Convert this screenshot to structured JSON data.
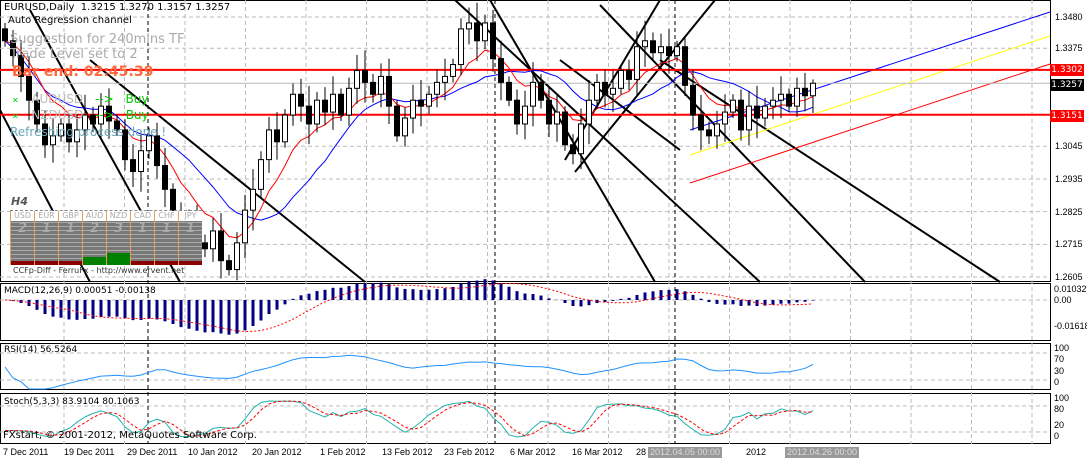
{
  "header": {
    "symbol_tf": "EURUSD,Daily",
    "ohlc": "1.3215 1.3270 1.3157 1.3257",
    "indicator": "Auto Regression channel"
  },
  "overlay": {
    "suggestion": "Suggestion for 240mins TF",
    "trade_level": "Trade Level set to 2",
    "bar_end": "Bar end: 02:45:39",
    "signals": [
      {
        "pair": "AUDUSD",
        "arrow": "-->",
        "action": "Buy"
      },
      {
        "pair": "NZDUSD",
        "arrow": "-->",
        "action": "Buy"
      }
    ],
    "status": "Refreshing process done !"
  },
  "ccfp": {
    "tf": "H4",
    "currencies": [
      "USD",
      "EUR",
      "GBP",
      "AUD",
      "NZD",
      "CAD",
      "CHF",
      "JPY"
    ],
    "values": [
      "2",
      "1",
      "1",
      "2",
      "3",
      "1",
      "1",
      "1"
    ],
    "bottom_colors": [
      "#8b0000",
      "#8b0000",
      "#8b0000",
      "#008000",
      "#008000",
      "#8b0000",
      "#8b0000",
      "#8b0000"
    ],
    "footer": "CCFp-Diff - FerruFx - http://www.ervent.net"
  },
  "price_axis": {
    "ticks": [
      "1.3480",
      "1.3375",
      "1.3045",
      "1.2935",
      "1.2825",
      "1.2715",
      "1.2605"
    ],
    "tick_values": [
      1.348,
      1.3375,
      1.3045,
      1.2935,
      1.2825,
      1.2715,
      1.2605
    ],
    "resistance": {
      "label": "1.3302",
      "value": 1.3302,
      "color": "#ff0000"
    },
    "support": {
      "label": "1.3151",
      "value": 1.3151,
      "color": "#ff0000"
    },
    "bid": {
      "label": "1.3257",
      "value": 1.3257
    }
  },
  "macd": {
    "label": "MACD(12,26,9) 0.00051 -0.00138",
    "ticks": [
      "0.01032",
      "0.00",
      "-0.01618"
    ]
  },
  "rsi": {
    "label": "RSI(14) 56.5264",
    "ticks": [
      "100",
      "70",
      "30",
      "0"
    ]
  },
  "stoch": {
    "label": "Stoch(5,3,3) 83.9104 80.1063",
    "ticks": [
      "100",
      "80",
      "20",
      "0"
    ]
  },
  "copyright": "FXstart, © 2001-2012, MetaQuotes Software Corp.",
  "time_axis": [
    "7 Dec 2011",
    "19 Dec 2011",
    "29 Dec 2011",
    "10 Jan 2012",
    "20 Jan 2012",
    "1 Feb 2012",
    "13 Feb 2012",
    "23 Feb 2012",
    "6 Mar 2012",
    "16 Mar 2012",
    "28",
    "2012.04.05 00:00",
    "2012",
    "2012.04.26 00:00"
  ],
  "colors": {
    "bull": "#ffffff",
    "bear": "#000000",
    "ma_fast": "#ff0000",
    "ma_slow": "#0000ff",
    "macd": "#000080",
    "rsi": "#1e90ff",
    "stoch_main": "#20b2aa",
    "stoch_signal": "#ff0000"
  },
  "chart_data": {
    "type": "candlestick",
    "symbol": "EURUSD",
    "timeframe": "Daily",
    "ylim": [
      1.2605,
      1.348
    ],
    "last_bar": {
      "open": 1.3215,
      "high": 1.327,
      "low": 1.3157,
      "close": 1.3257
    },
    "closes": [
      1.34,
      1.335,
      1.328,
      1.32,
      1.312,
      1.305,
      1.308,
      1.312,
      1.306,
      1.31,
      1.315,
      1.312,
      1.318,
      1.313,
      1.31,
      1.3,
      1.296,
      1.303,
      1.308,
      1.298,
      1.29,
      1.282,
      1.275,
      1.278,
      1.272,
      1.27,
      1.276,
      1.266,
      1.263,
      1.272,
      1.283,
      1.29,
      1.3,
      1.31,
      1.306,
      1.315,
      1.322,
      1.318,
      1.312,
      1.32,
      1.316,
      1.322,
      1.315,
      1.324,
      1.33,
      1.326,
      1.322,
      1.328,
      1.318,
      1.308,
      1.314,
      1.32,
      1.318,
      1.322,
      1.326,
      1.328,
      1.332,
      1.344,
      1.346,
      1.34,
      1.346,
      1.334,
      1.326,
      1.32,
      1.312,
      1.318,
      1.326,
      1.32,
      1.312,
      1.316,
      1.305,
      1.302,
      1.312,
      1.32,
      1.326,
      1.322,
      1.324,
      1.33,
      1.327,
      1.338,
      1.34,
      1.336,
      1.338,
      1.335,
      1.338,
      1.325,
      1.315,
      1.31,
      1.308,
      1.312,
      1.316,
      1.32,
      1.31,
      1.318,
      1.314,
      1.318,
      1.32,
      1.322,
      1.318,
      1.324,
      1.3215,
      1.3257
    ]
  }
}
